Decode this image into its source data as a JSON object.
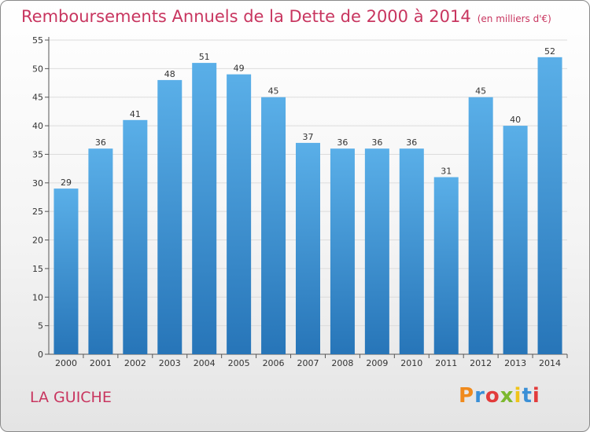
{
  "header": {
    "title": "Remboursements Annuels de la Dette de 2000 à 2014",
    "unit": "(en milliers d'€)"
  },
  "footer": {
    "commune": "LA GUICHE",
    "logo_text": "Proxiti"
  },
  "colors": {
    "bar_light": "#5aafe8",
    "bar_dark": "#2775b8",
    "title": "#c8355f",
    "grid": "#dcdcdc"
  },
  "chart_data": {
    "type": "bar",
    "title": "Remboursements Annuels de la Dette de 2000 à 2014",
    "subtitle": "(en milliers d'€)",
    "categories": [
      "2000",
      "2001",
      "2002",
      "2003",
      "2004",
      "2005",
      "2006",
      "2007",
      "2008",
      "2009",
      "2010",
      "2011",
      "2012",
      "2013",
      "2014"
    ],
    "values": [
      29,
      36,
      41,
      48,
      51,
      49,
      45,
      37,
      36,
      36,
      36,
      31,
      45,
      40,
      52
    ],
    "ylim": [
      0,
      55
    ],
    "yticks": [
      0,
      5,
      10,
      15,
      20,
      25,
      30,
      35,
      40,
      45,
      50,
      55
    ],
    "grid": true,
    "data_labels": true
  }
}
